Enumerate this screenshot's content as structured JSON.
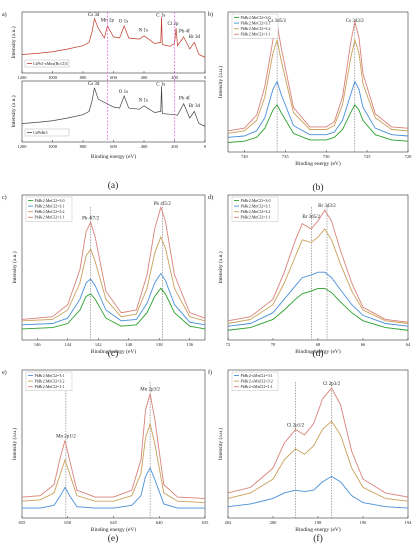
{
  "chart_data": [
    {
      "id": "a",
      "type": "line",
      "panel_label": "a)",
      "caption": "(a)",
      "xlabel": "Binding energy (eV)",
      "ylabel": "Intensity (a.u.)",
      "xlim": [
        1200,
        0
      ],
      "xticks": [
        1200,
        1000,
        800,
        600,
        400,
        200,
        0
      ],
      "subplots": [
        {
          "series": [
            {
              "name": "CsPb1-xMnx(Br,Cl)3",
              "color": "#c0392b",
              "x": [
                1200,
                1100,
                1000,
                900,
                800,
                760,
                740,
                725,
                700,
                660,
                640,
                600,
                560,
                530,
                500,
                430,
                400,
                330,
                290,
                285,
                280,
                230,
                200,
                190,
                180,
                140,
                100,
                70,
                40,
                0
              ],
              "y": [
                0.3,
                0.32,
                0.35,
                0.4,
                0.46,
                0.52,
                0.72,
                0.95,
                0.78,
                0.6,
                0.82,
                0.62,
                0.6,
                0.82,
                0.6,
                0.58,
                0.64,
                0.5,
                0.52,
                0.98,
                0.48,
                0.45,
                0.5,
                0.78,
                0.46,
                0.62,
                0.4,
                0.52,
                0.3,
                0.25
              ]
            }
          ],
          "annotations": [
            "Cs 3d",
            "Mn 2p",
            "O 1s",
            "N 1s",
            "C 1s",
            "Cl 2p",
            "Pb 4f",
            "Br 3d"
          ]
        },
        {
          "series": [
            {
              "name": "CsPbBr3",
              "color": "#444444",
              "x": [
                1200,
                1100,
                1000,
                900,
                800,
                760,
                740,
                725,
                700,
                600,
                560,
                530,
                500,
                430,
                400,
                330,
                290,
                285,
                280,
                200,
                180,
                140,
                100,
                70,
                40,
                0
              ],
              "y": [
                0.3,
                0.32,
                0.35,
                0.4,
                0.46,
                0.52,
                0.72,
                0.95,
                0.74,
                0.6,
                0.58,
                0.8,
                0.58,
                0.56,
                0.62,
                0.5,
                0.52,
                0.98,
                0.48,
                0.46,
                0.45,
                0.66,
                0.4,
                0.52,
                0.3,
                0.25
              ]
            }
          ],
          "annotations": [
            "Cs 3d",
            "O 1s",
            "N 1s",
            "C 1s",
            "Pb 4f",
            "Br 3d"
          ]
        }
      ]
    },
    {
      "id": "b",
      "type": "line",
      "panel_label": "b)",
      "caption": "(b)",
      "xlabel": "Binding energy (eV)",
      "ylabel": "Intensity (a.u.)",
      "xlim": [
        742,
        720
      ],
      "xticks": [
        740,
        735,
        730,
        725,
        720
      ],
      "series": [
        {
          "name": "PbBr2:MnCl2=3:0",
          "color": "#2ca02c",
          "x": [
            742,
            740,
            738.5,
            737.5,
            736.5,
            736,
            735.5,
            734,
            732,
            730,
            729,
            728,
            727,
            726.5,
            726,
            725.5,
            724,
            722,
            720
          ],
          "y": [
            0.05,
            0.06,
            0.09,
            0.16,
            0.3,
            0.34,
            0.28,
            0.12,
            0.07,
            0.07,
            0.09,
            0.15,
            0.28,
            0.34,
            0.3,
            0.22,
            0.11,
            0.07,
            0.06
          ]
        },
        {
          "name": "PbBr2:MnCl2=3:1",
          "color": "#4a90d9",
          "x": [
            742,
            740,
            738.5,
            737.5,
            736.5,
            736,
            735.5,
            734,
            732,
            730,
            729,
            728,
            727,
            726.5,
            726,
            725.5,
            724,
            722,
            720
          ],
          "y": [
            0.09,
            0.1,
            0.14,
            0.24,
            0.46,
            0.52,
            0.42,
            0.18,
            0.11,
            0.11,
            0.13,
            0.22,
            0.42,
            0.52,
            0.46,
            0.32,
            0.16,
            0.11,
            0.1
          ]
        },
        {
          "name": "PbBr2:MnCl2=3:2",
          "color": "#c9a15a",
          "x": [
            742,
            740,
            738.5,
            737.5,
            736.5,
            736,
            735.5,
            734,
            732,
            730,
            729,
            728,
            727,
            726.5,
            726,
            725.5,
            724,
            722,
            720
          ],
          "y": [
            0.12,
            0.14,
            0.22,
            0.4,
            0.74,
            0.84,
            0.68,
            0.28,
            0.15,
            0.15,
            0.18,
            0.34,
            0.7,
            0.84,
            0.74,
            0.5,
            0.24,
            0.15,
            0.14
          ]
        },
        {
          "name": "PbBr2:MnCl2=1:1",
          "color": "#d9827a",
          "x": [
            742,
            740,
            738.5,
            737.5,
            736.5,
            736,
            735.5,
            734,
            732,
            730,
            729,
            728,
            727,
            726.5,
            726,
            725.5,
            724,
            722,
            720
          ],
          "y": [
            0.14,
            0.16,
            0.26,
            0.48,
            0.84,
            0.96,
            0.78,
            0.32,
            0.17,
            0.17,
            0.21,
            0.4,
            0.82,
            0.98,
            0.86,
            0.58,
            0.27,
            0.17,
            0.16
          ]
        }
      ],
      "annotations": [
        "Cs 3d5/2",
        "Cs 3d3/2"
      ],
      "dashed_lines": [
        736,
        726.5
      ]
    },
    {
      "id": "c",
      "type": "line",
      "panel_label": "c)",
      "caption": "(c)",
      "xlabel": "Binding energy (eV)",
      "ylabel": "Intensity (a.u.)",
      "xlim": [
        147,
        135
      ],
      "xticks": [
        146,
        144,
        142,
        140,
        138,
        136
      ],
      "series": [
        {
          "name": "PbBr2:MnCl2=3:0",
          "color": "#2ca02c",
          "x": [
            147,
            145,
            144,
            143.2,
            142.8,
            142.5,
            142.2,
            141.5,
            140.5,
            139.5,
            138.8,
            138.3,
            137.9,
            137.6,
            137,
            136,
            135
          ],
          "y": [
            0.06,
            0.07,
            0.1,
            0.2,
            0.3,
            0.32,
            0.28,
            0.14,
            0.08,
            0.09,
            0.18,
            0.3,
            0.36,
            0.32,
            0.18,
            0.08,
            0.06
          ]
        },
        {
          "name": "PbBr2:MnCl2=3:1",
          "color": "#4a90d9",
          "x": [
            147,
            145,
            144,
            143.2,
            142.8,
            142.5,
            142.2,
            141.5,
            140.5,
            139.5,
            138.8,
            138.3,
            137.9,
            137.6,
            137,
            136,
            135
          ],
          "y": [
            0.09,
            0.1,
            0.14,
            0.28,
            0.4,
            0.43,
            0.38,
            0.2,
            0.12,
            0.13,
            0.25,
            0.4,
            0.47,
            0.42,
            0.24,
            0.11,
            0.09
          ]
        },
        {
          "name": "PbBr2:MnCl2=3:2",
          "color": "#c9a15a",
          "x": [
            147,
            145,
            144,
            143.2,
            142.8,
            142.5,
            142.2,
            141.5,
            140.5,
            139.5,
            138.8,
            138.3,
            137.9,
            137.6,
            137,
            136,
            135
          ],
          "y": [
            0.12,
            0.13,
            0.2,
            0.4,
            0.6,
            0.65,
            0.56,
            0.28,
            0.15,
            0.17,
            0.36,
            0.62,
            0.74,
            0.66,
            0.36,
            0.15,
            0.12
          ]
        },
        {
          "name": "PbBr2:MnCl2=1:1",
          "color": "#d9827a",
          "x": [
            147,
            145,
            144,
            143.2,
            142.8,
            142.5,
            142.2,
            141.5,
            140.5,
            139.5,
            138.8,
            138.3,
            137.9,
            137.6,
            137,
            136,
            135
          ],
          "y": [
            0.13,
            0.15,
            0.24,
            0.5,
            0.78,
            0.85,
            0.74,
            0.34,
            0.18,
            0.2,
            0.46,
            0.8,
            0.96,
            0.86,
            0.46,
            0.18,
            0.14
          ]
        }
      ],
      "annotations": [
        "Pb 4f7/2",
        "Pb 4f5/2"
      ],
      "dashed_lines": [
        142.5,
        137.8
      ]
    },
    {
      "id": "d",
      "type": "line",
      "panel_label": "d)",
      "caption": "(d)",
      "xlabel": "Binding energy (eV)",
      "ylabel": "Intensity (a.u.)",
      "xlim": [
        72,
        64
      ],
      "xticks": [
        72,
        70,
        68,
        66,
        64
      ],
      "series": [
        {
          "name": "PbBr2:MnCl2=3:0",
          "color": "#2ca02c",
          "x": [
            72,
            71,
            70,
            69.5,
            69,
            68.7,
            68.3,
            68,
            67.7,
            67.4,
            67,
            66.5,
            66,
            65,
            64
          ],
          "y": [
            0.05,
            0.07,
            0.13,
            0.2,
            0.28,
            0.32,
            0.34,
            0.36,
            0.36,
            0.33,
            0.26,
            0.18,
            0.12,
            0.07,
            0.05
          ]
        },
        {
          "name": "PbBr2:MnCl2=3:1",
          "color": "#4a90d9",
          "x": [
            72,
            71,
            70,
            69.5,
            69,
            68.7,
            68.3,
            68,
            67.7,
            67.4,
            67,
            66.5,
            66,
            65,
            64
          ],
          "y": [
            0.08,
            0.1,
            0.18,
            0.28,
            0.38,
            0.44,
            0.46,
            0.48,
            0.48,
            0.44,
            0.35,
            0.24,
            0.16,
            0.1,
            0.08
          ]
        },
        {
          "name": "PbBr2:MnCl2=3:2",
          "color": "#c9a15a",
          "x": [
            72,
            71,
            70,
            69.5,
            69,
            68.7,
            68.3,
            68,
            67.7,
            67.4,
            67,
            66.5,
            66,
            65,
            64
          ],
          "y": [
            0.1,
            0.13,
            0.24,
            0.4,
            0.6,
            0.72,
            0.7,
            0.74,
            0.8,
            0.72,
            0.54,
            0.34,
            0.2,
            0.12,
            0.1
          ]
        },
        {
          "name": "PbBr2:MnCl2=1:1",
          "color": "#d9827a",
          "x": [
            72,
            71,
            70,
            69.5,
            69,
            68.7,
            68.3,
            68,
            67.7,
            67.4,
            67,
            66.5,
            66,
            65,
            64
          ],
          "y": [
            0.12,
            0.15,
            0.28,
            0.48,
            0.72,
            0.84,
            0.8,
            0.86,
            0.94,
            0.86,
            0.64,
            0.4,
            0.22,
            0.13,
            0.11
          ]
        }
      ],
      "annotations": [
        "Br 3d5/2",
        "Br 3d3/2"
      ],
      "dashed_lines": [
        68.3,
        67.6
      ]
    },
    {
      "id": "e",
      "type": "line",
      "panel_label": "e)",
      "caption": "(e)",
      "xlabel": "Binding energy (eV)",
      "ylabel": "Intensity (a.u.)",
      "xlim": [
        655,
        635
      ],
      "xticks": [
        655,
        650,
        645,
        640,
        635
      ],
      "series": [
        {
          "name": "PbBr2:MnCl2=3:1",
          "color": "#4a90d9",
          "x": [
            655,
            653,
            651.5,
            650.8,
            650.3,
            649.8,
            649,
            647,
            645,
            643,
            642,
            641.5,
            641,
            640.5,
            639.5,
            638,
            635
          ],
          "y": [
            0.05,
            0.05,
            0.07,
            0.14,
            0.2,
            0.14,
            0.06,
            0.05,
            0.05,
            0.07,
            0.14,
            0.28,
            0.34,
            0.26,
            0.08,
            0.05,
            0.05
          ]
        },
        {
          "name": "PbBr2:MnCl2=3:2",
          "color": "#c9a15a",
          "x": [
            655,
            653,
            651.5,
            650.8,
            650.3,
            649.8,
            649,
            647,
            645,
            643,
            642,
            641.5,
            641,
            640.5,
            639.5,
            638,
            635
          ],
          "y": [
            0.1,
            0.11,
            0.16,
            0.3,
            0.4,
            0.3,
            0.14,
            0.1,
            0.1,
            0.14,
            0.3,
            0.56,
            0.66,
            0.52,
            0.16,
            0.1,
            0.09
          ]
        },
        {
          "name": "PbBr2:MnCl2=1:1",
          "color": "#d9827a",
          "x": [
            655,
            653,
            651.5,
            650.8,
            650.3,
            649.8,
            649,
            647,
            645,
            643,
            642,
            641.5,
            641,
            640.5,
            639.5,
            638,
            635
          ],
          "y": [
            0.13,
            0.14,
            0.22,
            0.42,
            0.54,
            0.4,
            0.18,
            0.13,
            0.13,
            0.18,
            0.4,
            0.76,
            0.88,
            0.7,
            0.22,
            0.13,
            0.12
          ]
        }
      ],
      "annotations": [
        "Mn 2p1/2",
        "Mn 2p3/2"
      ],
      "dashed_lines": [
        650.2,
        641
      ]
    },
    {
      "id": "f",
      "type": "line",
      "panel_label": "f)",
      "caption": "(f)",
      "xlabel": "Binding energy (eV)",
      "ylabel": "Intensity (a.u.)",
      "xlim": [
        202,
        194
      ],
      "xticks": [
        202,
        200,
        198,
        196,
        194
      ],
      "series": [
        {
          "name": "PbBr2-xMnCl2=3:1",
          "color": "#4a90d9",
          "x": [
            202,
            201,
            200,
            199.5,
            199,
            198.6,
            198.2,
            197.8,
            197.4,
            197,
            196.5,
            196,
            195,
            194
          ],
          "y": [
            0.06,
            0.08,
            0.12,
            0.16,
            0.18,
            0.17,
            0.18,
            0.24,
            0.28,
            0.24,
            0.14,
            0.09,
            0.06,
            0.05
          ]
        },
        {
          "name": "PbBr2-xMnCl2=3:2",
          "color": "#c9a15a",
          "x": [
            202,
            201,
            200,
            199.5,
            199,
            198.6,
            198.2,
            197.8,
            197.4,
            197,
            196.5,
            196,
            195,
            194
          ],
          "y": [
            0.12,
            0.16,
            0.26,
            0.4,
            0.48,
            0.44,
            0.5,
            0.62,
            0.68,
            0.58,
            0.34,
            0.2,
            0.12,
            0.1
          ]
        },
        {
          "name": "PbBr2-xMnCl2=1:1",
          "color": "#d9827a",
          "x": [
            202,
            201,
            200,
            199.5,
            199,
            198.6,
            198.2,
            197.8,
            197.4,
            197,
            196.5,
            196,
            195,
            194
          ],
          "y": [
            0.16,
            0.2,
            0.34,
            0.52,
            0.62,
            0.58,
            0.66,
            0.84,
            0.92,
            0.8,
            0.46,
            0.26,
            0.16,
            0.13
          ]
        }
      ],
      "annotations": [
        "Cl 2p1/2",
        "Cl 2p3/2"
      ],
      "dashed_lines": [
        199,
        197.4
      ]
    }
  ]
}
